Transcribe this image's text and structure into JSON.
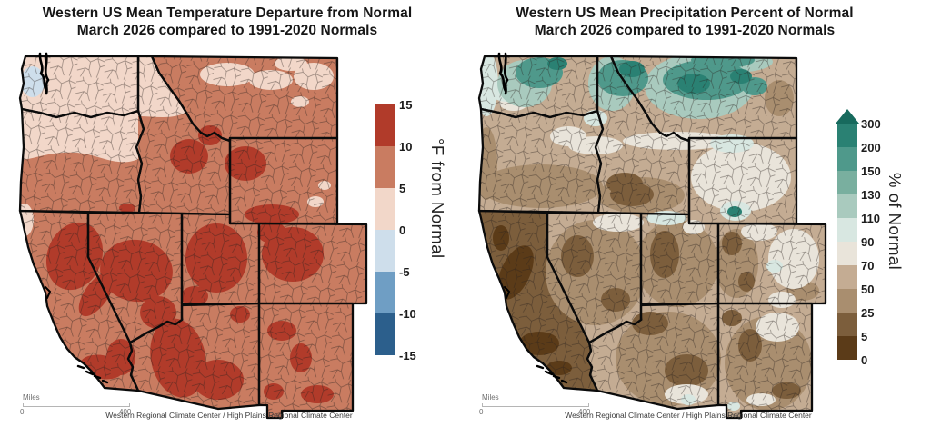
{
  "left_panel": {
    "title_line1": "Western US Mean Temperature Departure from Normal",
    "title_line2": "March 2026 compared to 1991-2020 Normals",
    "colorbar": {
      "axis_label": "°F from Normal",
      "tick_labels": [
        "15",
        "10",
        "5",
        "0",
        "-5",
        "-10",
        "-15"
      ],
      "segment_colors": [
        "#b13b2a",
        "#c97c61",
        "#f2d7c9",
        "#cedeeb",
        "#6f9ec4",
        "#2c5f8c"
      ]
    },
    "scalebar": {
      "label": "Miles",
      "start": "0",
      "end": "400"
    },
    "attribution": "Western Regional Climate Center / High Plains Regional Climate Center"
  },
  "right_panel": {
    "title_line1": "Western US Mean Precipitation Percent of Normal",
    "title_line2": "March 2026 compared to 1991-2020 Normals",
    "colorbar": {
      "axis_label": "% of Normal",
      "tick_labels": [
        "300",
        "200",
        "150",
        "130",
        "110",
        "90",
        "70",
        "50",
        "25",
        "5",
        "0"
      ],
      "segment_colors": [
        "#2a8173",
        "#4f998b",
        "#79af9f",
        "#a9cabe",
        "#d8e7e1",
        "#e9e4da",
        "#c4ac93",
        "#a98e6f",
        "#7c5e3c",
        "#5b3b18"
      ],
      "overflow_arrow_color": "#176a5d"
    },
    "scalebar": {
      "label": "Miles",
      "start": "0",
      "end": "400"
    },
    "attribution": "Western Regional Climate Center / High Plains Regional Climate Center"
  }
}
